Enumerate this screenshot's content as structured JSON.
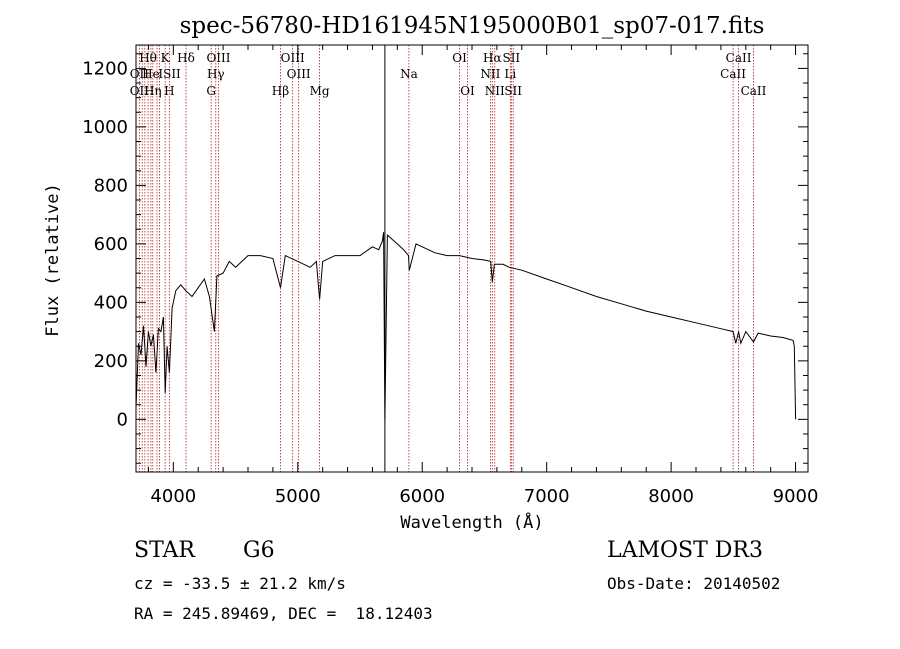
{
  "chart_data": {
    "type": "line",
    "title": "spec-56780-HD161945N195000B01_sp07-017.fits",
    "xlabel": "Wavelength (Å)",
    "ylabel": "Flux (relative)",
    "xlim": [
      3700,
      9100
    ],
    "ylim": [
      -180,
      1280
    ],
    "xticks": [
      4000,
      5000,
      6000,
      7000,
      8000,
      9000
    ],
    "yticks": [
      0,
      200,
      400,
      600,
      800,
      1000,
      1200
    ],
    "series": [
      {
        "name": "flux",
        "x": [
          3700,
          3720,
          3740,
          3760,
          3780,
          3800,
          3820,
          3840,
          3860,
          3880,
          3900,
          3920,
          3935,
          3950,
          3968,
          3990,
          4020,
          4060,
          4100,
          4150,
          4200,
          4250,
          4290,
          4310,
          4330,
          4350,
          4400,
          4450,
          4500,
          4600,
          4700,
          4800,
          4861,
          4900,
          5000,
          5100,
          5150,
          5175,
          5200,
          5300,
          5400,
          5500,
          5600,
          5650,
          5680,
          5690,
          5700,
          5720,
          5800,
          5850,
          5890,
          5896,
          5950,
          6000,
          6100,
          6200,
          6300,
          6400,
          6500,
          6550,
          6563,
          6580,
          6650,
          6700,
          6800,
          7000,
          7200,
          7400,
          7600,
          7800,
          8000,
          8200,
          8400,
          8498,
          8520,
          8542,
          8560,
          8600,
          8662,
          8700,
          8800,
          8900,
          8980,
          8990,
          9000
        ],
        "y": [
          40,
          260,
          220,
          320,
          180,
          300,
          250,
          290,
          160,
          310,
          300,
          350,
          90,
          250,
          160,
          380,
          440,
          460,
          440,
          420,
          450,
          480,
          420,
          360,
          300,
          490,
          500,
          540,
          520,
          560,
          560,
          550,
          450,
          560,
          540,
          520,
          540,
          410,
          540,
          560,
          560,
          560,
          590,
          580,
          610,
          640,
          0,
          630,
          600,
          580,
          560,
          510,
          600,
          590,
          570,
          560,
          560,
          550,
          545,
          540,
          470,
          530,
          530,
          520,
          510,
          480,
          450,
          420,
          395,
          370,
          350,
          330,
          310,
          300,
          260,
          300,
          260,
          300,
          265,
          295,
          285,
          280,
          270,
          250,
          0
        ]
      }
    ],
    "spectral_lines": [
      {
        "label": "Hθ",
        "x": 3797,
        "row": 1
      },
      {
        "label": "OII",
        "x": 3727,
        "row": 2
      },
      {
        "label": "OII",
        "x": 3727,
        "row": 3
      },
      {
        "label": "He",
        "x": 3820,
        "row": 2
      },
      {
        "label": "Hη",
        "x": 3835,
        "row": 3
      },
      {
        "label": "K",
        "x": 3934,
        "row": 1
      },
      {
        "label": "H",
        "x": 3968,
        "row": 3
      },
      {
        "label": "ISII",
        "x": 3970,
        "row": 2
      },
      {
        "label": "Hδ",
        "x": 4102,
        "row": 1
      },
      {
        "label": "OIII",
        "x": 4363,
        "row": 1
      },
      {
        "label": "Hγ",
        "x": 4341,
        "row": 2
      },
      {
        "label": "G",
        "x": 4304,
        "row": 3
      },
      {
        "label": "Hβ",
        "x": 4861,
        "row": 3
      },
      {
        "label": "OIII",
        "x": 4959,
        "row": 1
      },
      {
        "label": "OIII",
        "x": 5007,
        "row": 2
      },
      {
        "label": "Mg",
        "x": 5175,
        "row": 3
      },
      {
        "label": "Na",
        "x": 5893,
        "row": 2
      },
      {
        "label": "OI",
        "x": 6300,
        "row": 1
      },
      {
        "label": "OI",
        "x": 6364,
        "row": 3
      },
      {
        "label": "Hα",
        "x": 6563,
        "row": 1
      },
      {
        "label": "NII",
        "x": 6548,
        "row": 2
      },
      {
        "label": "NII",
        "x": 6583,
        "row": 3
      },
      {
        "label": "SII",
        "x": 6716,
        "row": 1
      },
      {
        "label": "Li",
        "x": 6708,
        "row": 2
      },
      {
        "label": "SII",
        "x": 6731,
        "row": 3
      },
      {
        "label": "CaII",
        "x": 8542,
        "row": 1
      },
      {
        "label": "CaII",
        "x": 8498,
        "row": 2
      },
      {
        "label": "CaII",
        "x": 8662,
        "row": 3
      }
    ],
    "line_marker_x": [
      3727,
      3750,
      3771,
      3797,
      3820,
      3835,
      3869,
      3889,
      3934,
      3968,
      4102,
      4304,
      4341,
      4363,
      4861,
      4959,
      5007,
      5175,
      5893,
      6300,
      6364,
      6548,
      6563,
      6583,
      6708,
      6716,
      6731,
      8498,
      8542,
      8662
    ],
    "reference_line_x": 5700
  },
  "footer": {
    "object_type": "STAR",
    "subclass": "G6",
    "survey": "LAMOST DR3",
    "redshift": "cz = -33.5 ± 21.2 km/s",
    "obs_date": "Obs-Date: 20140502",
    "coords": "RA = 245.89469, DEC =  18.12403"
  },
  "colors": {
    "axis": "#000000",
    "spectrum": "#000000",
    "line_marker": "#b22222"
  }
}
